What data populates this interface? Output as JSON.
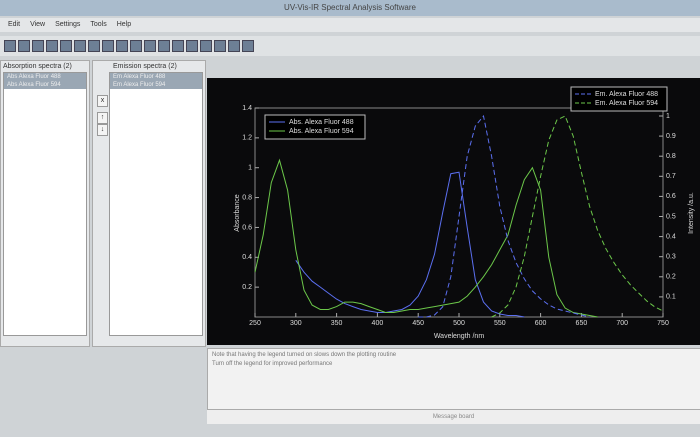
{
  "window": {
    "title": "UV-Vis-IR Spectral Analysis Software",
    "menu": [
      "Edit",
      "View",
      "Settings",
      "Tools",
      "Help"
    ]
  },
  "panels": {
    "absorption": {
      "header": "Absorption spectra (2)",
      "items": [
        "Abs Alexa Fluor 488",
        "Abs Alexa Fluor 594"
      ]
    },
    "emission": {
      "header": "Emission spectra (2)",
      "items": [
        "Em Alexa Fluor 488",
        "Em Alexa Fluor 594"
      ]
    },
    "buttons": [
      "x",
      "↑",
      "↓"
    ]
  },
  "notes": [
    "Note that having the legend turned on slows down the plotting routine",
    "Turn off the legend for improved performance"
  ],
  "message_board": "Message board",
  "chart_data": {
    "type": "line",
    "x_label": "Wavelength /nm",
    "y_label": "Absorbance",
    "y2_label": "Intensity /a.u.",
    "xlim": [
      250,
      750
    ],
    "xticks": [
      250,
      300,
      350,
      400,
      450,
      500,
      550,
      600,
      650,
      700,
      750
    ],
    "ylim": [
      0,
      1.4
    ],
    "yticks": [
      0.2,
      0.4,
      0.6,
      0.8,
      1,
      1.2,
      1.4
    ],
    "y2lim": [
      0,
      1
    ],
    "y2ticks": [
      0.1,
      0.2,
      0.3,
      0.4,
      0.5,
      0.6,
      0.7,
      0.8,
      0.9,
      1
    ],
    "x": [
      250,
      260,
      270,
      280,
      290,
      300,
      310,
      320,
      330,
      340,
      350,
      360,
      370,
      380,
      390,
      400,
      410,
      420,
      430,
      440,
      450,
      460,
      470,
      480,
      490,
      500,
      510,
      520,
      530,
      540,
      550,
      560,
      570,
      580,
      590,
      600,
      610,
      620,
      630,
      640,
      650,
      660,
      670,
      680,
      690,
      700,
      710,
      720,
      730,
      740,
      750
    ],
    "series": [
      {
        "name": "Abs. Alexa Fluor 488",
        "color": "#5b6ff0",
        "line_style": "solid",
        "axis": "y",
        "legend": "abs",
        "values": [
          null,
          null,
          null,
          null,
          null,
          0.38,
          0.3,
          0.24,
          0.2,
          0.16,
          0.12,
          0.09,
          0.07,
          0.05,
          0.04,
          0.03,
          0.03,
          0.04,
          0.05,
          0.08,
          0.14,
          0.25,
          0.42,
          0.7,
          0.96,
          0.97,
          0.6,
          0.25,
          0.1,
          0.04,
          0.02,
          0.01,
          0.01,
          0,
          null,
          null,
          null,
          null,
          null,
          null,
          null,
          null,
          null,
          null,
          null,
          null,
          null,
          null,
          null,
          null,
          null
        ]
      },
      {
        "name": "Abs. Alexa Fluor 594",
        "color": "#6cc84a",
        "line_style": "solid",
        "axis": "y",
        "legend": "abs",
        "values": [
          0.3,
          0.55,
          0.9,
          1.05,
          0.85,
          0.45,
          0.18,
          0.08,
          0.05,
          0.05,
          0.07,
          0.1,
          0.1,
          0.09,
          0.07,
          0.05,
          0.03,
          0.03,
          0.04,
          0.05,
          0.05,
          0.06,
          0.07,
          0.08,
          0.09,
          0.1,
          0.14,
          0.2,
          0.27,
          0.35,
          0.45,
          0.55,
          0.75,
          0.92,
          1,
          0.85,
          0.4,
          0.15,
          0.06,
          0.03,
          0.02,
          0.01,
          0,
          null,
          null,
          null,
          null,
          null,
          null,
          null,
          null
        ]
      },
      {
        "name": "Em. Alexa Fluor 488",
        "color": "#5b6ff0",
        "line_style": "dashed",
        "axis": "y2",
        "legend": "em",
        "values": [
          null,
          null,
          null,
          null,
          null,
          null,
          null,
          null,
          null,
          null,
          null,
          null,
          null,
          null,
          null,
          null,
          null,
          null,
          null,
          null,
          0,
          0,
          0.01,
          0.05,
          0.2,
          0.5,
          0.8,
          0.95,
          1,
          0.8,
          0.55,
          0.38,
          0.27,
          0.19,
          0.13,
          0.09,
          0.06,
          0.04,
          0.03,
          0.02,
          0.01,
          0,
          null,
          null,
          null,
          null,
          null,
          null,
          null,
          null,
          null
        ]
      },
      {
        "name": "Em. Alexa Fluor 594",
        "color": "#6cc84a",
        "line_style": "dashed",
        "axis": "y2",
        "legend": "em",
        "values": [
          null,
          null,
          null,
          null,
          null,
          null,
          null,
          null,
          null,
          null,
          null,
          null,
          null,
          null,
          null,
          null,
          null,
          null,
          null,
          null,
          null,
          null,
          null,
          null,
          null,
          null,
          null,
          null,
          null,
          0,
          0.02,
          0.06,
          0.15,
          0.3,
          0.5,
          0.7,
          0.88,
          0.98,
          1,
          0.9,
          0.72,
          0.55,
          0.43,
          0.34,
          0.27,
          0.21,
          0.16,
          0.12,
          0.08,
          0.05,
          0.03
        ]
      }
    ]
  }
}
